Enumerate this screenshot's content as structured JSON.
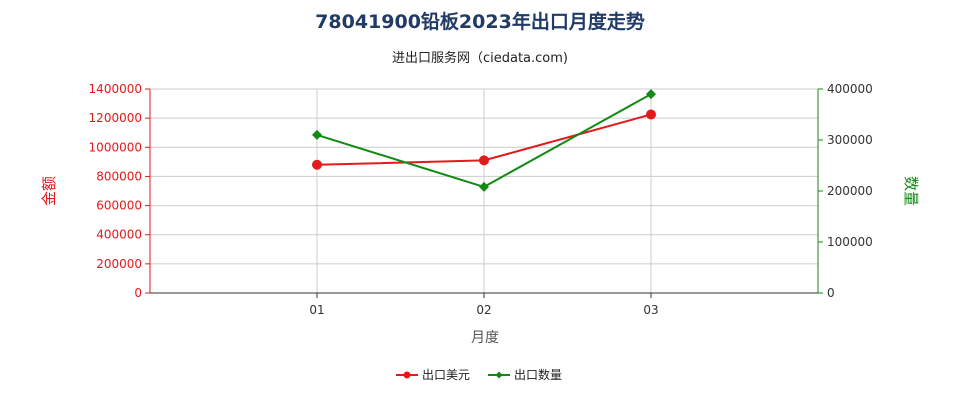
{
  "chart_data": {
    "type": "line",
    "title": "78041900铅板2023年出口月度走势",
    "subtitle": "进出口服务网（ciedata.com)",
    "xlabel": "月度",
    "ylabel_left": "金额",
    "ylabel_right": "数量",
    "categories": [
      "01",
      "02",
      "03"
    ],
    "y_left": {
      "min": 0,
      "max": 1400000,
      "ticks": [
        "0",
        "200000",
        "400000",
        "600000",
        "800000",
        "1000000",
        "1200000",
        "1400000"
      ]
    },
    "y_right": {
      "min": 0,
      "max": 400000,
      "ticks": [
        "0",
        "100000",
        "200000",
        "300000",
        "400000"
      ]
    },
    "series": [
      {
        "name": "出口美元",
        "axis": "left",
        "color": "#e31a1c",
        "values": [
          880000,
          910000,
          1225000
        ]
      },
      {
        "name": "出口数量",
        "axis": "right",
        "color": "#138a13",
        "values": [
          310000,
          208000,
          390000
        ]
      }
    ],
    "grid": true,
    "legend_position": "bottom-center",
    "colors": {
      "title": "#1f3b66",
      "left_axis": "#e31a1c",
      "right_axis": "#138a13",
      "grid": "#cccccc"
    }
  }
}
